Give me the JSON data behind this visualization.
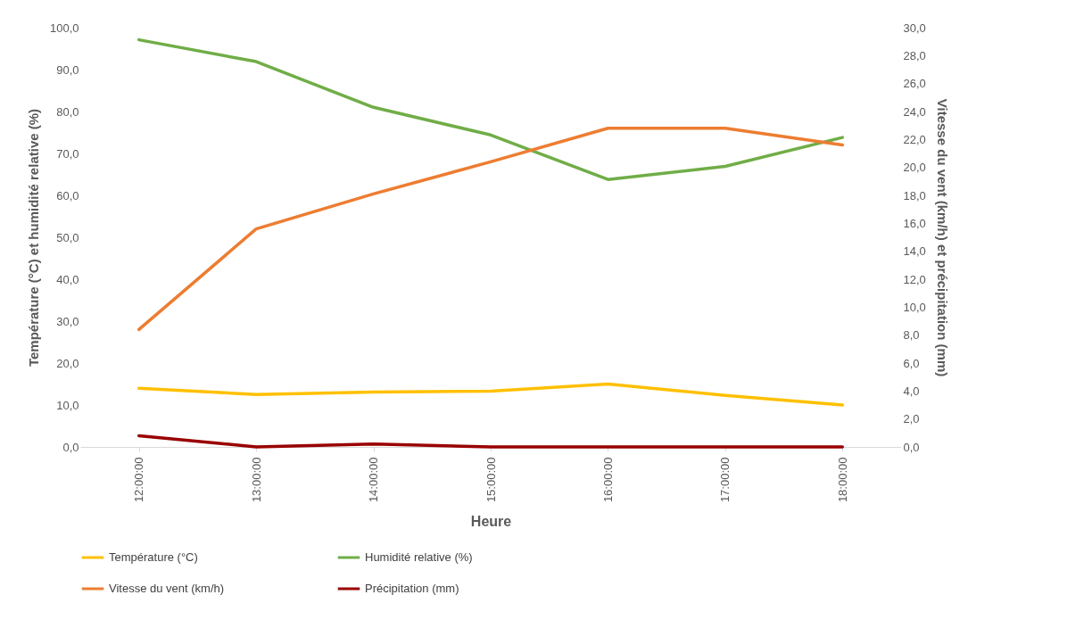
{
  "chart_data": {
    "type": "line",
    "xlabel": "Heure",
    "ylabel": "Température (°C) et humidité relative (%)",
    "y2label": "Vitesse du vent (km/h) et précipitation (mm)",
    "categories": [
      "12:00:00",
      "13:00:00",
      "14:00:00",
      "15:00:00",
      "16:00:00",
      "17:00:00",
      "18:00:00"
    ],
    "series": [
      {
        "name": "Température (°C)",
        "color": "#ffc000",
        "values": [
          14.0,
          12.5,
          13.1,
          13.3,
          15.0,
          12.3,
          10.0
        ]
      },
      {
        "name": "Humidité relative (%)",
        "color": "#70ad47",
        "values": [
          97.1,
          91.9,
          81.0,
          74.4,
          63.8,
          66.9,
          73.8
        ]
      },
      {
        "name": "Vitesse du vent (km/h)",
        "color": "#ed7d31",
        "axis": "y2",
        "values": [
          8.4,
          15.6,
          18.1,
          20.4,
          22.8,
          22.8,
          21.6
        ]
      },
      {
        "name": "Précipitation (mm)",
        "color": "#990000",
        "axis": "y2",
        "values": [
          0.8,
          0.0,
          0.2,
          0.0,
          0.0,
          0.0,
          0.0
        ]
      }
    ],
    "ylim": [
      0,
      100
    ],
    "yticks": [
      {
        "value": 0,
        "label": "0,0"
      },
      {
        "value": 10,
        "label": "10,0"
      },
      {
        "value": 20,
        "label": "20,0"
      },
      {
        "value": 30,
        "label": "30,0"
      },
      {
        "value": 40,
        "label": "40,0"
      },
      {
        "value": 50,
        "label": "50,0"
      },
      {
        "value": 60,
        "label": "60,0"
      },
      {
        "value": 70,
        "label": "70,0"
      },
      {
        "value": 80,
        "label": "80,0"
      },
      {
        "value": 90,
        "label": "90,0"
      },
      {
        "value": 100,
        "label": "100,0"
      }
    ],
    "y2lim": [
      0,
      30
    ],
    "y2ticks": [
      {
        "value": 0,
        "label": "0,0"
      },
      {
        "value": 2,
        "label": "2,0"
      },
      {
        "value": 4,
        "label": "4,0"
      },
      {
        "value": 6,
        "label": "6,0"
      },
      {
        "value": 8,
        "label": "8,0"
      },
      {
        "value": 10,
        "label": "10,0"
      },
      {
        "value": 12,
        "label": "12,0"
      },
      {
        "value": 14,
        "label": "14,0"
      },
      {
        "value": 16,
        "label": "16,0"
      },
      {
        "value": 18,
        "label": "18,0"
      },
      {
        "value": 20,
        "label": "20,0"
      },
      {
        "value": 22,
        "label": "22,0"
      },
      {
        "value": 24,
        "label": "24,0"
      },
      {
        "value": 26,
        "label": "26,0"
      },
      {
        "value": 28,
        "label": "28,0"
      },
      {
        "value": 30,
        "label": "30,0"
      }
    ],
    "grid": false,
    "legend": "bottom",
    "marker": "none",
    "line_style": "solid"
  }
}
